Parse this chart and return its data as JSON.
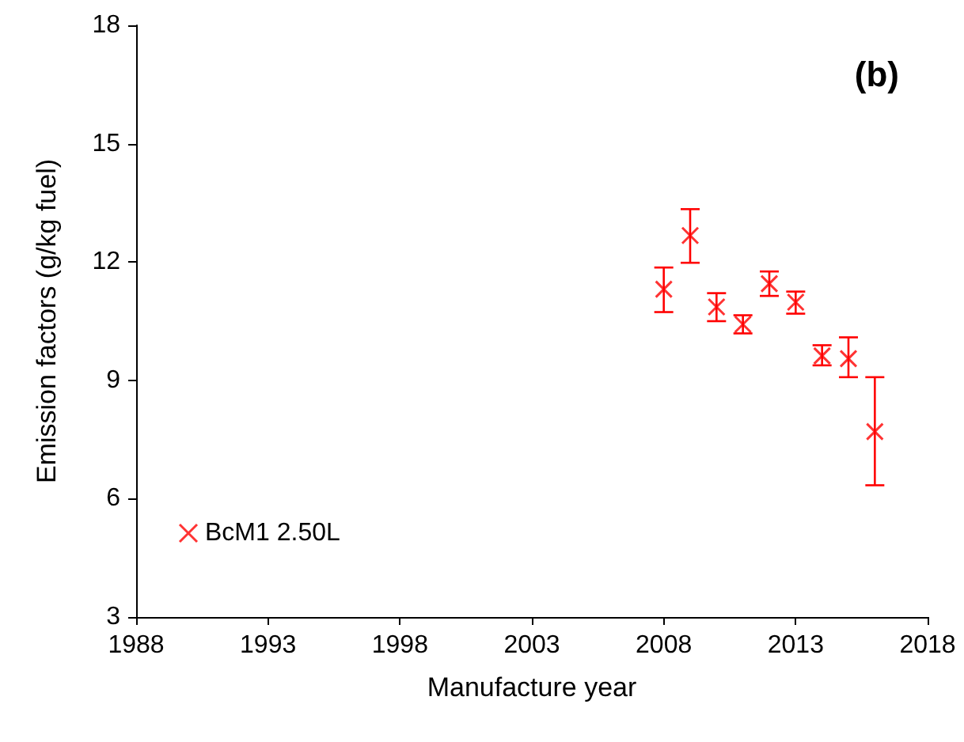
{
  "chart_data": {
    "type": "scatter",
    "xlabel": "Manufacture year",
    "ylabel": "Emission factors (g/kg fuel)",
    "annotations": [
      "(b)"
    ],
    "series": [
      {
        "name": "BcM1 2.50L",
        "color": "#ff0000",
        "x": [
          2008,
          2009,
          2010,
          2011,
          2012,
          2013,
          2014,
          2015,
          2016
        ],
        "values": [
          11.31,
          12.67,
          10.86,
          10.42,
          11.45,
          10.98,
          9.62,
          9.55,
          7.7
        ],
        "errors": [
          [
            10.73,
            11.86
          ],
          [
            11.98,
            13.34
          ],
          [
            10.5,
            11.21
          ],
          [
            10.19,
            10.65
          ],
          [
            11.14,
            11.76
          ],
          [
            10.69,
            11.25
          ],
          [
            9.38,
            9.89
          ],
          [
            9.08,
            10.09
          ],
          [
            6.34,
            9.08
          ]
        ]
      }
    ],
    "xlim": [
      1988,
      2018
    ],
    "xticks": [
      1988,
      1993,
      1998,
      2003,
      2008,
      2013,
      2018
    ],
    "ylim": [
      3,
      18
    ],
    "yticks": [
      3,
      6,
      9,
      12,
      15,
      18
    ],
    "grid": false,
    "legend": "bottom left",
    "marker": "cross"
  }
}
